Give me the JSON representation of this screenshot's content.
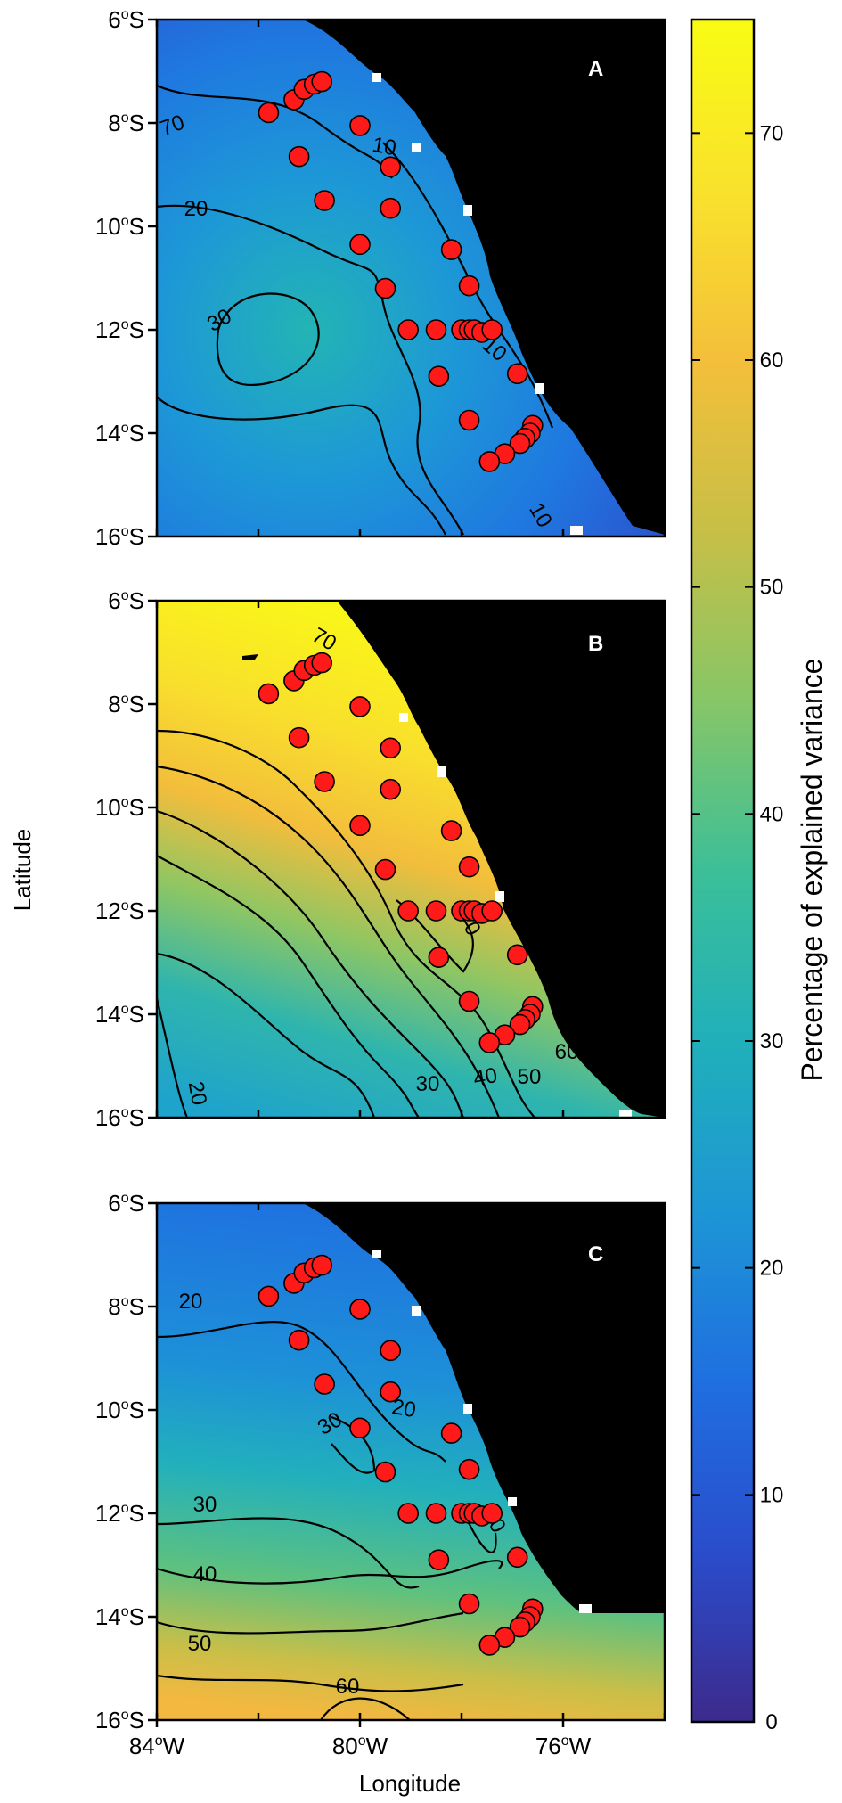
{
  "lat_ticks": [
    {
      "lat": 6,
      "label": "6",
      "hemi": "S"
    },
    {
      "lat": 8,
      "label": "8",
      "hemi": "S"
    },
    {
      "lat": 10,
      "label": "10",
      "hemi": "S"
    },
    {
      "lat": 12,
      "label": "12",
      "hemi": "S"
    },
    {
      "lat": 14,
      "label": "14",
      "hemi": "S"
    },
    {
      "lat": 16,
      "label": "16",
      "hemi": "S"
    }
  ],
  "lon_ticks": [
    {
      "lon": 84,
      "label": "84",
      "hemi": "W"
    },
    {
      "lon": 80,
      "label": "80",
      "hemi": "W"
    },
    {
      "lon": 76,
      "label": "76",
      "hemi": "W"
    }
  ],
  "degree_symbol": "o",
  "ylabel": "Latitude",
  "xlabel": "Longitude",
  "colorbar": {
    "title": "Percentage of explained variance",
    "ticks": [
      "0",
      "10",
      "20",
      "30",
      "40",
      "50",
      "60",
      "70"
    ],
    "tick_values": [
      0,
      10,
      20,
      30,
      40,
      50,
      60,
      70
    ],
    "range": [
      0,
      75
    ],
    "colors": [
      "#3d2a8c",
      "#2a4dcc",
      "#1f6fe0",
      "#1d96d5",
      "#20b0ba",
      "#3cbf98",
      "#87c667",
      "#c7bf46",
      "#f4bf3a",
      "#f9e22c",
      "#f9fb14"
    ]
  },
  "land_color": "#000000",
  "station_color": "#ff1a1a",
  "stations": [
    {
      "lon": 81.8,
      "lat": 7.8
    },
    {
      "lon": 81.3,
      "lat": 7.55
    },
    {
      "lon": 81.1,
      "lat": 7.35
    },
    {
      "lon": 80.9,
      "lat": 7.25
    },
    {
      "lon": 80.75,
      "lat": 7.2
    },
    {
      "lon": 81.2,
      "lat": 8.65
    },
    {
      "lon": 80.0,
      "lat": 8.05
    },
    {
      "lon": 79.4,
      "lat": 8.85
    },
    {
      "lon": 80.7,
      "lat": 9.5
    },
    {
      "lon": 79.4,
      "lat": 9.65
    },
    {
      "lon": 80.0,
      "lat": 10.35
    },
    {
      "lon": 78.2,
      "lat": 10.45
    },
    {
      "lon": 79.5,
      "lat": 11.2
    },
    {
      "lon": 77.85,
      "lat": 11.15
    },
    {
      "lon": 79.05,
      "lat": 12.0
    },
    {
      "lon": 78.5,
      "lat": 12.0
    },
    {
      "lon": 78.0,
      "lat": 12.0
    },
    {
      "lon": 77.85,
      "lat": 12.0
    },
    {
      "lon": 77.75,
      "lat": 12.0
    },
    {
      "lon": 77.6,
      "lat": 12.05
    },
    {
      "lon": 77.4,
      "lat": 12.0
    },
    {
      "lon": 78.45,
      "lat": 12.9
    },
    {
      "lon": 76.9,
      "lat": 12.85
    },
    {
      "lon": 77.85,
      "lat": 13.75
    },
    {
      "lon": 76.6,
      "lat": 13.85
    },
    {
      "lon": 76.65,
      "lat": 14.0
    },
    {
      "lon": 76.75,
      "lat": 14.1
    },
    {
      "lon": 76.85,
      "lat": 14.2
    },
    {
      "lon": 77.15,
      "lat": 14.4
    },
    {
      "lon": 77.45,
      "lat": 14.55
    }
  ],
  "panels": [
    {
      "label": "A",
      "data_level": 15,
      "contour_labels": [
        "70",
        "10",
        "20",
        "30",
        "10",
        "10"
      ]
    },
    {
      "label": "B",
      "data_level": 55,
      "contour_labels": [
        "70",
        "70",
        "20",
        "30",
        "40",
        "50",
        "60"
      ]
    },
    {
      "label": "C",
      "data_level": 30,
      "contour_labels": [
        "20",
        "20",
        "30",
        "30",
        "40",
        "50",
        "60",
        "30"
      ]
    }
  ]
}
